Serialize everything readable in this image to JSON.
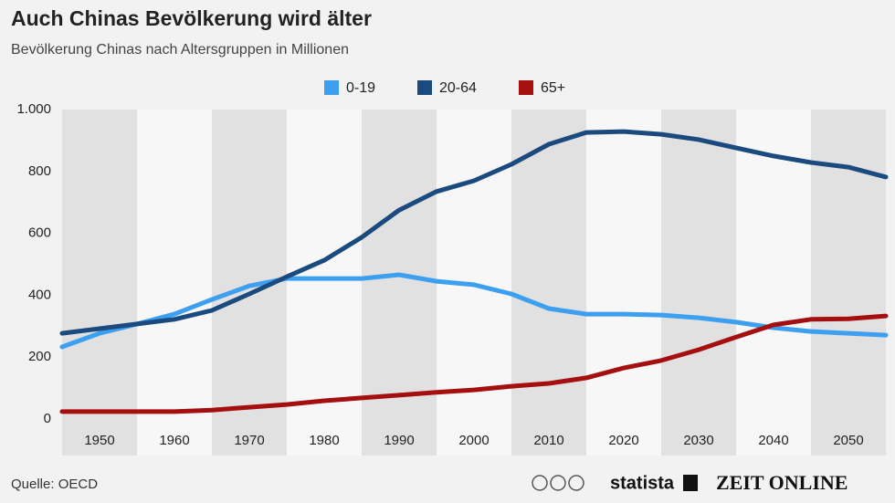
{
  "chart_data": {
    "type": "line",
    "title": "Auch Chinas Bevölkerung wird älter",
    "subtitle": "Bevölkerung Chinas nach Altersgruppen in Millionen",
    "x": [
      1945,
      1950,
      1955,
      1960,
      1965,
      1970,
      1975,
      1980,
      1985,
      1990,
      1995,
      2000,
      2005,
      2010,
      2015,
      2020,
      2025,
      2030,
      2035,
      2040,
      2045,
      2050,
      2055
    ],
    "series": [
      {
        "name": "0-19",
        "color": "#3d9ff0",
        "values": [
          233,
          277,
          307,
          339,
          386,
          430,
          454,
          454,
          454,
          466,
          445,
          434,
          404,
          357,
          339,
          339,
          336,
          327,
          313,
          295,
          283,
          277,
          271
        ]
      },
      {
        "name": "20-64",
        "color": "#1b4a7e",
        "values": [
          277,
          292,
          307,
          322,
          351,
          404,
          460,
          513,
          587,
          675,
          735,
          770,
          823,
          888,
          926,
          929,
          920,
          903,
          876,
          850,
          829,
          814,
          782
        ]
      },
      {
        "name": "65+",
        "color": "#a50f0f",
        "values": [
          24,
          24,
          24,
          24,
          29,
          38,
          47,
          59,
          68,
          77,
          86,
          94,
          106,
          115,
          133,
          165,
          189,
          224,
          265,
          304,
          322,
          324,
          333
        ]
      }
    ],
    "xlim": [
      1945,
      2055
    ],
    "xticks": [
      1950,
      1960,
      1970,
      1980,
      1990,
      2000,
      2010,
      2020,
      2030,
      2040,
      2050
    ],
    "ylim": [
      0,
      1000
    ],
    "yticks": [
      0,
      200,
      400,
      600,
      800,
      {
        "value": 1000,
        "label": "1.000"
      }
    ],
    "grid": false,
    "source": "Quelle: OECD",
    "brand": "statista",
    "partner": "ZEIT ONLINE"
  }
}
